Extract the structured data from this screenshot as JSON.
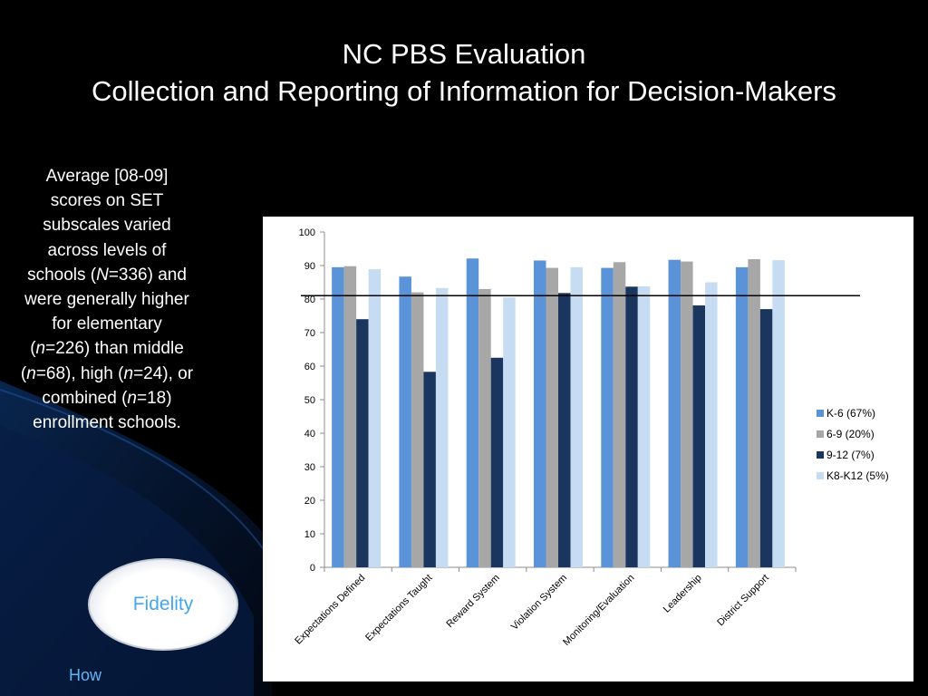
{
  "slide": {
    "title_line1": "NC PBS Evaluation",
    "title_line2": "Collection and Reporting of Information for Decision-Makers",
    "side_text": {
      "p1": "Average  [08-09] scores on SET subscales varied across levels of schools (",
      "N": "N",
      "p2": "=336) and were generally higher for elementary (",
      "n1": "n",
      "p3": "=226) than middle (",
      "n2": "n",
      "p4": "=68), high (",
      "n3": "n",
      "p5": "=24), or combined (",
      "n4": "n",
      "p6": "=18) enrollment schools."
    },
    "fidelity_button": "Fidelity",
    "how_link": "How"
  },
  "colors": {
    "background": "#000000",
    "swoosh": "#0b2f63",
    "fidelity_text": "#44a6ee",
    "how_text": "#5fb6f4"
  },
  "chart_data": {
    "type": "bar",
    "categories": [
      "Expectations Defined",
      "Expectations Taught",
      "Reward System",
      "Violation System",
      "Monitoring/Evaluation",
      "Leadership",
      "District Support"
    ],
    "series": [
      {
        "name": "K-6 (67%)",
        "color": "#5b93d8",
        "values": [
          89.5,
          86.7,
          92.1,
          91.5,
          89.3,
          91.7,
          89.5
        ]
      },
      {
        "name": "6-9 (20%)",
        "color": "#a7a7a7",
        "values": [
          89.8,
          82.0,
          83.0,
          89.3,
          91.0,
          91.2,
          91.9
        ]
      },
      {
        "name": "9-12 (7%)",
        "color": "#1b365e",
        "values": [
          74.0,
          58.3,
          62.5,
          81.8,
          83.7,
          78.1,
          77.0
        ]
      },
      {
        "name": "K8-K12 (5%)",
        "color": "#c6dcf2",
        "values": [
          88.9,
          83.3,
          80.5,
          89.5,
          83.8,
          85.0,
          91.6
        ]
      }
    ],
    "yticks": [
      0,
      10,
      20,
      30,
      40,
      50,
      60,
      70,
      80,
      90,
      100
    ],
    "ylim": [
      0,
      100
    ],
    "reference_line": 81,
    "legend_position": "right",
    "title": "",
    "xlabel": "",
    "ylabel": ""
  }
}
